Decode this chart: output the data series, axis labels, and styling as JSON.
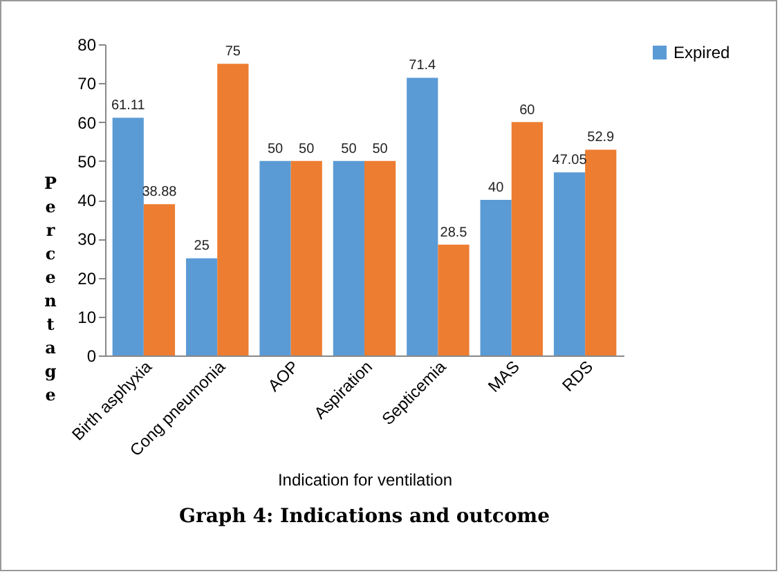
{
  "chart_data": {
    "type": "bar",
    "title": "Graph 4: Indications and outcome",
    "xlabel": "Indication for ventilation",
    "ylabel": "Percentage",
    "categories": [
      "Birth asphyxia",
      "Cong pneumonia",
      "AOP",
      "Aspiration",
      "Septicemia",
      "MAS",
      "RDS"
    ],
    "series": [
      {
        "name": "Expired",
        "color": "#5b9bd5",
        "values": [
          61.11,
          25,
          50,
          50,
          71.4,
          40,
          47.05
        ]
      },
      {
        "color": "#ed7d31",
        "values": [
          38.88,
          75,
          50,
          50,
          28.5,
          60,
          52.9
        ]
      }
    ],
    "ylim": [
      0,
      80
    ],
    "yticks": [
      0,
      10,
      20,
      30,
      40,
      50,
      60,
      70,
      80
    ],
    "data_labels": true,
    "legend": "right",
    "grid": false
  }
}
